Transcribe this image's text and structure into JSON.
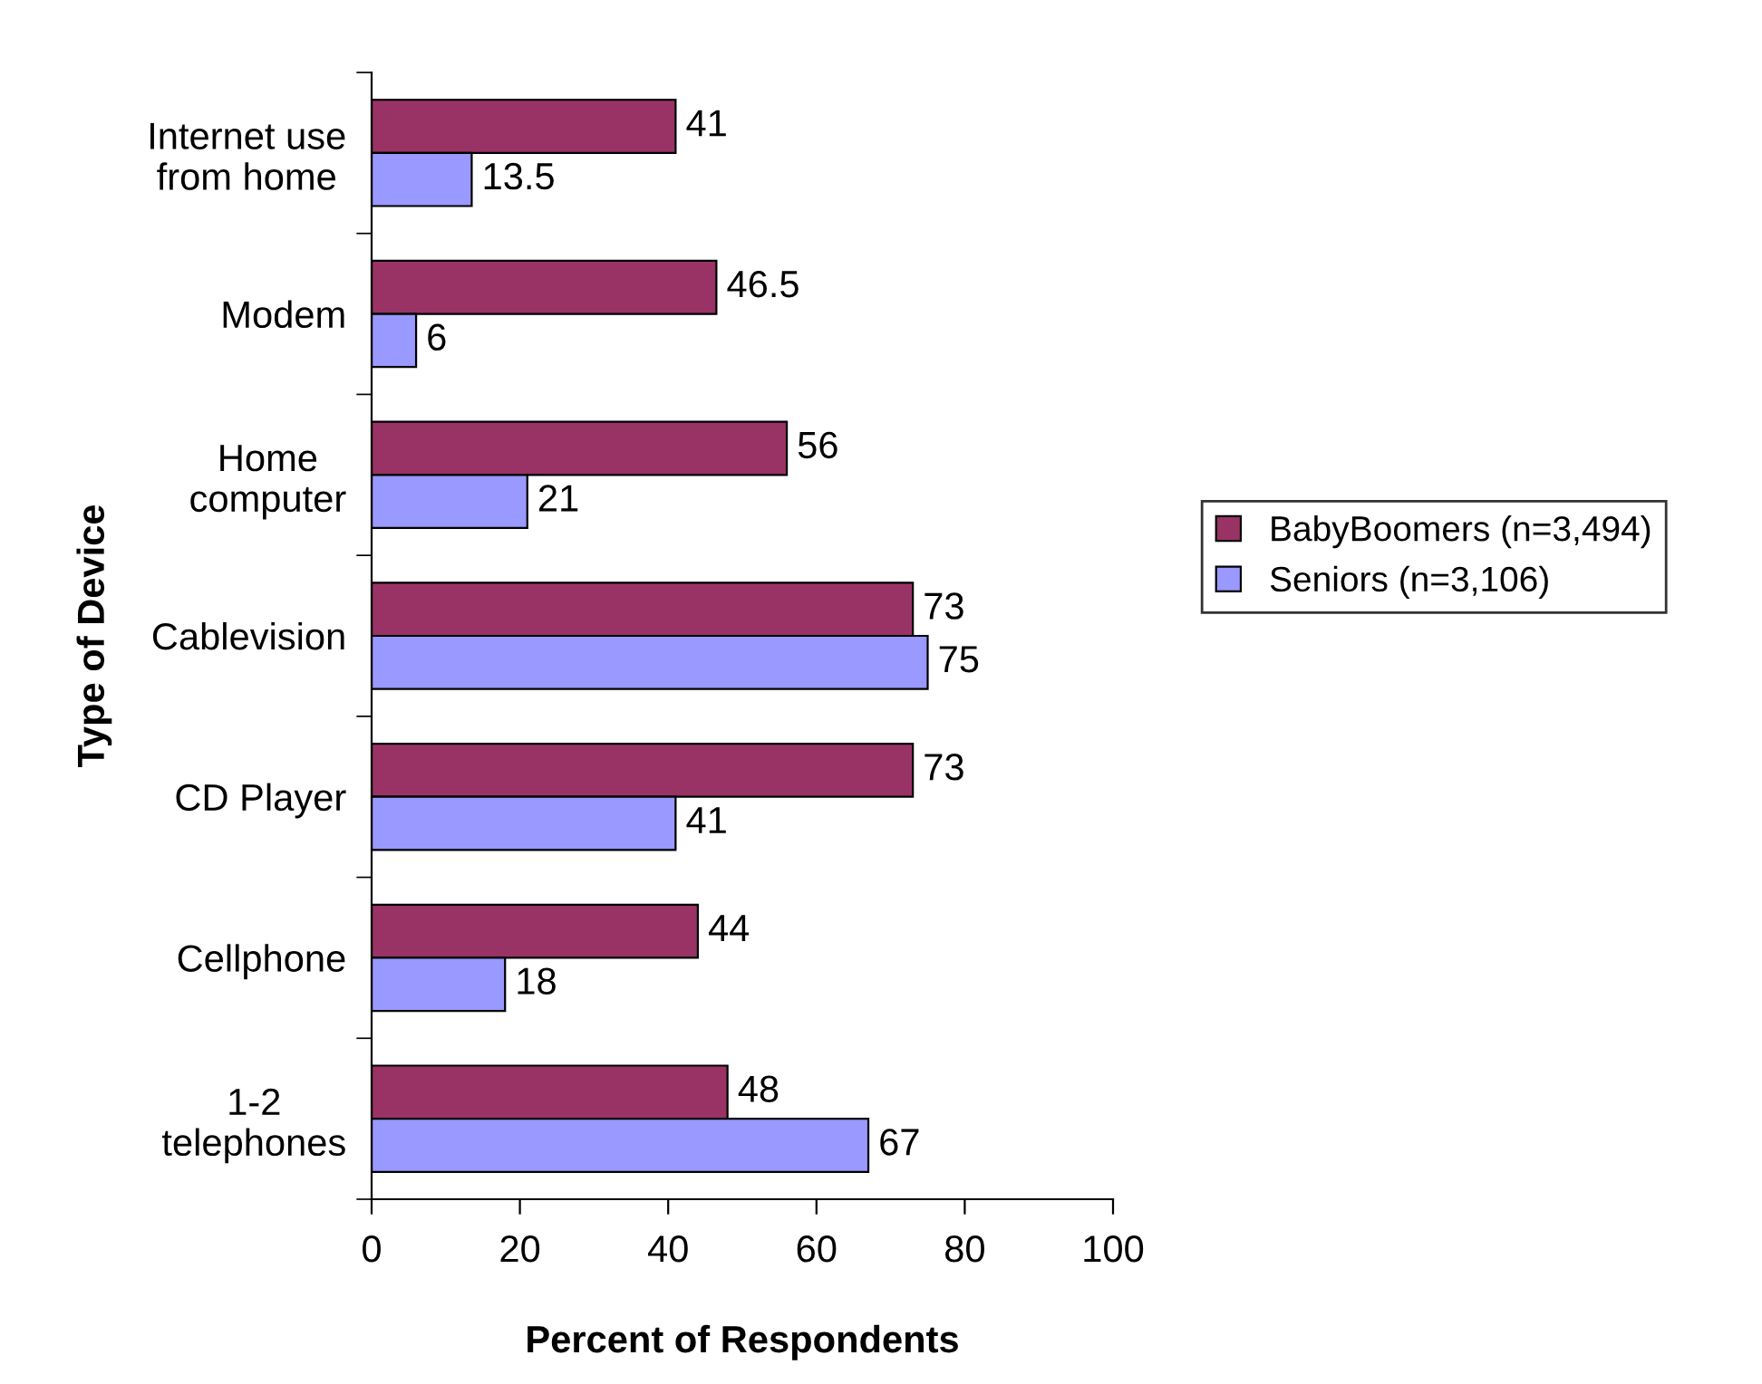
{
  "chart_data": {
    "type": "bar",
    "orientation": "horizontal",
    "xlabel": "Percent of Respondents",
    "ylabel": "Type of Device",
    "categories": [
      "Internet use\nfrom home",
      "Modem",
      "Home\ncomputer",
      "Cablevision",
      "CD Player",
      "Cellphone",
      "1-2\ntelephones"
    ],
    "series": [
      {
        "name": "BabyBoomers (n=3,494)",
        "color": "#993366",
        "values": [
          41,
          46.5,
          56,
          73,
          73,
          44,
          48
        ]
      },
      {
        "name": "Seniors (n=3,106)",
        "color": "#9999ff",
        "values": [
          13.5,
          6,
          21,
          75,
          41,
          18,
          67
        ]
      }
    ],
    "xlim": [
      0,
      100
    ],
    "xticks": [
      0,
      20,
      40,
      60,
      80,
      100
    ],
    "data_labels": true,
    "legend": "right",
    "grid": false
  }
}
